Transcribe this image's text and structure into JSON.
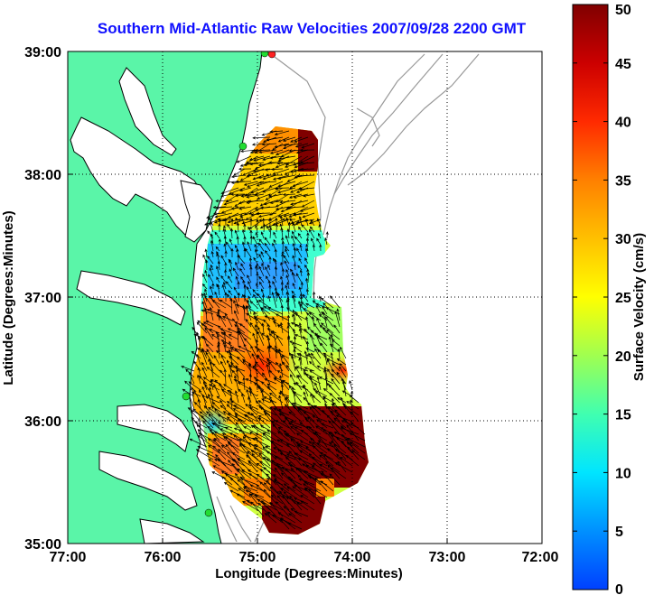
{
  "title": "Southern Mid-Atlantic Raw Velocities 2007/09/28 2200 GMT",
  "x_axis": {
    "label": "Longitude (Degrees:Minutes)",
    "ticks": [
      "77:00",
      "76:00",
      "75:00",
      "74:00",
      "73:00",
      "72:00"
    ]
  },
  "y_axis": {
    "label": "Latitude (Degrees:Minutes)",
    "ticks": [
      "39:00",
      "38:00",
      "37:00",
      "36:00",
      "35:00"
    ]
  },
  "colorbar": {
    "label": "Surface Velocity (cm/s)",
    "ticks": [
      "50",
      "45",
      "40",
      "35",
      "30",
      "25",
      "20",
      "15",
      "10",
      "5",
      "0"
    ]
  },
  "colors": {
    "land": "#5af5a8",
    "coastline": "#000000",
    "bathymetry": "#999999",
    "title": "#1010ff",
    "station_green": "#22dd33",
    "station_red": "#ff2222"
  }
}
